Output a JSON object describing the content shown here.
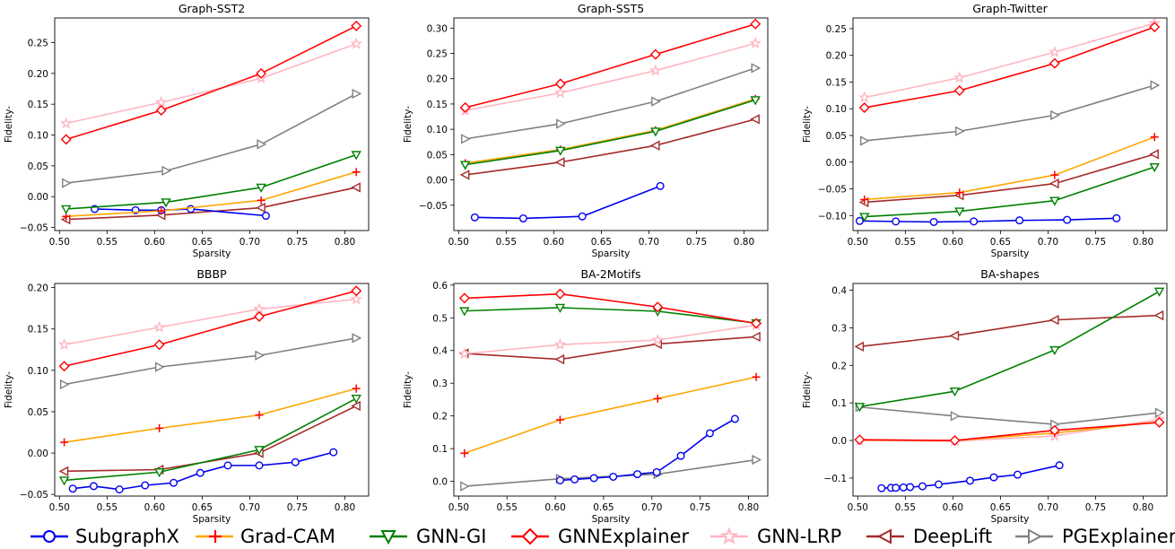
{
  "chart_data": {
    "type": "line",
    "series_styles": [
      {
        "name": "SubgraphX",
        "color": "#0000ee",
        "marker": "circle"
      },
      {
        "name": "Grad-CAM",
        "color": "#ffa500",
        "marker": "plus"
      },
      {
        "name": "GNN-GI",
        "color": "#008000",
        "marker": "triangle-down"
      },
      {
        "name": "GNNExplainer",
        "color": "#ff0000",
        "marker": "diamond"
      },
      {
        "name": "GNN-LRP",
        "color": "#ffb6c1",
        "marker": "star"
      },
      {
        "name": "DeepLift",
        "color": "#a52a2a",
        "marker": "triangle-left"
      },
      {
        "name": "PGExplainer",
        "color": "#808080",
        "marker": "triangle-right"
      }
    ],
    "legend": {
      "placement": "bottom",
      "labels": [
        "SubgraphX",
        "Grad-CAM",
        "GNN-GI",
        "GNNExplainer",
        "GNN-LRP",
        "DeepLift",
        "PGExplainer"
      ]
    },
    "panels": [
      {
        "title": "Graph-SST2",
        "xlabel": "Sparsity",
        "ylabel": "Fidelity-",
        "xlim": [
          0.495,
          0.825
        ],
        "ylim": [
          -0.055,
          0.29
        ],
        "xticks": [
          0.5,
          0.55,
          0.6,
          0.65,
          0.7,
          0.75,
          0.8
        ],
        "xtick_labels": [
          "0.50",
          "0.55",
          "0.60",
          "0.65",
          "0.70",
          "0.75",
          "0.80"
        ],
        "yticks": [
          -0.05,
          0.0,
          0.05,
          0.1,
          0.15,
          0.2,
          0.25
        ],
        "ytick_labels": [
          "−0.05",
          "0.00",
          "0.05",
          "0.10",
          "0.15",
          "0.20",
          "0.25"
        ],
        "series": [
          {
            "name": "SubgraphX",
            "x": [
              0.537,
              0.58,
              0.607,
              0.638,
              0.717
            ],
            "y": [
              -0.02,
              -0.022,
              -0.022,
              -0.02,
              -0.031
            ]
          },
          {
            "name": "Grad-CAM",
            "x": [
              0.507,
              0.607,
              0.712,
              0.812
            ],
            "y": [
              -0.032,
              -0.023,
              -0.006,
              0.04
            ]
          },
          {
            "name": "GNN-GI",
            "x": [
              0.507,
              0.612,
              0.712,
              0.812
            ],
            "y": [
              -0.02,
              -0.009,
              0.015,
              0.068
            ]
          },
          {
            "name": "GNNExplainer",
            "x": [
              0.507,
              0.607,
              0.712,
              0.812
            ],
            "y": [
              0.093,
              0.14,
              0.2,
              0.277
            ]
          },
          {
            "name": "GNN-LRP",
            "x": [
              0.507,
              0.607,
              0.712,
              0.812
            ],
            "y": [
              0.119,
              0.153,
              0.192,
              0.248
            ]
          },
          {
            "name": "DeepLift",
            "x": [
              0.507,
              0.607,
              0.712,
              0.812
            ],
            "y": [
              -0.037,
              -0.03,
              -0.018,
              0.015
            ]
          },
          {
            "name": "PGExplainer",
            "x": [
              0.507,
              0.612,
              0.712,
              0.812
            ],
            "y": [
              0.022,
              0.042,
              0.085,
              0.167
            ]
          }
        ]
      },
      {
        "title": "Graph-SST5",
        "xlabel": "Sparsity",
        "ylabel": "Fidelity-",
        "xlim": [
          0.495,
          0.825
        ],
        "ylim": [
          -0.1,
          0.32
        ],
        "xticks": [
          0.5,
          0.55,
          0.6,
          0.65,
          0.7,
          0.75,
          0.8
        ],
        "xtick_labels": [
          "0.50",
          "0.55",
          "0.60",
          "0.65",
          "0.70",
          "0.75",
          "0.80"
        ],
        "yticks": [
          -0.05,
          0.0,
          0.05,
          0.1,
          0.15,
          0.2,
          0.25,
          0.3
        ],
        "ytick_labels": [
          "−0.05",
          "0.00",
          "0.05",
          "0.10",
          "0.15",
          "0.20",
          "0.25",
          "0.30"
        ],
        "series": [
          {
            "name": "SubgraphX",
            "x": [
              0.517,
              0.568,
              0.63,
              0.712
            ],
            "y": [
              -0.074,
              -0.076,
              -0.072,
              -0.012
            ]
          },
          {
            "name": "Grad-CAM",
            "x": [
              0.507,
              0.607,
              0.707,
              0.812
            ],
            "y": [
              0.033,
              0.06,
              0.098,
              0.16
            ]
          },
          {
            "name": "GNN-GI",
            "x": [
              0.507,
              0.607,
              0.707,
              0.812
            ],
            "y": [
              0.03,
              0.058,
              0.096,
              0.158
            ]
          },
          {
            "name": "GNNExplainer",
            "x": [
              0.507,
              0.607,
              0.707,
              0.812
            ],
            "y": [
              0.143,
              0.19,
              0.248,
              0.308
            ]
          },
          {
            "name": "GNN-LRP",
            "x": [
              0.507,
              0.607,
              0.707,
              0.812
            ],
            "y": [
              0.137,
              0.172,
              0.216,
              0.27
            ]
          },
          {
            "name": "DeepLift",
            "x": [
              0.507,
              0.607,
              0.707,
              0.812
            ],
            "y": [
              0.01,
              0.035,
              0.068,
              0.12
            ]
          },
          {
            "name": "PGExplainer",
            "x": [
              0.507,
              0.607,
              0.707,
              0.812
            ],
            "y": [
              0.081,
              0.111,
              0.155,
              0.221
            ]
          }
        ]
      },
      {
        "title": "Graph-Twitter",
        "xlabel": "Sparsity",
        "ylabel": "Fidelity-",
        "xlim": [
          0.495,
          0.825
        ],
        "ylim": [
          -0.128,
          0.27
        ],
        "xticks": [
          0.5,
          0.55,
          0.6,
          0.65,
          0.7,
          0.75,
          0.8
        ],
        "xtick_labels": [
          "0.50",
          "0.55",
          "0.60",
          "0.65",
          "0.70",
          "0.75",
          "0.80"
        ],
        "yticks": [
          -0.1,
          -0.05,
          0.0,
          0.05,
          0.1,
          0.15,
          0.2,
          0.25
        ],
        "ytick_labels": [
          "−0.10",
          "−0.05",
          "0.00",
          "0.05",
          "0.10",
          "0.15",
          "0.20",
          "0.25"
        ],
        "series": [
          {
            "name": "SubgraphX",
            "x": [
              0.502,
              0.54,
              0.58,
              0.622,
              0.67,
              0.72,
              0.772
            ],
            "y": [
              -0.11,
              -0.111,
              -0.112,
              -0.111,
              -0.109,
              -0.108,
              -0.105
            ]
          },
          {
            "name": "Grad-CAM",
            "x": [
              0.507,
              0.607,
              0.707,
              0.812
            ],
            "y": [
              -0.07,
              -0.057,
              -0.024,
              0.047
            ]
          },
          {
            "name": "GNN-GI",
            "x": [
              0.507,
              0.607,
              0.707,
              0.812
            ],
            "y": [
              -0.102,
              -0.092,
              -0.072,
              -0.009
            ]
          },
          {
            "name": "GNNExplainer",
            "x": [
              0.507,
              0.607,
              0.707,
              0.812
            ],
            "y": [
              0.102,
              0.134,
              0.185,
              0.253
            ]
          },
          {
            "name": "GNN-LRP",
            "x": [
              0.507,
              0.607,
              0.707,
              0.812
            ],
            "y": [
              0.121,
              0.158,
              0.206,
              0.26
            ]
          },
          {
            "name": "DeepLift",
            "x": [
              0.507,
              0.607,
              0.707,
              0.812
            ],
            "y": [
              -0.075,
              -0.062,
              -0.04,
              0.015
            ]
          },
          {
            "name": "PGExplainer",
            "x": [
              0.507,
              0.607,
              0.707,
              0.812
            ],
            "y": [
              0.04,
              0.058,
              0.088,
              0.144
            ]
          }
        ]
      },
      {
        "title": "BBBP",
        "xlabel": "Sparsity",
        "ylabel": "Fidelity-",
        "xlim": [
          0.495,
          0.825
        ],
        "ylim": [
          -0.052,
          0.205
        ],
        "xticks": [
          0.5,
          0.55,
          0.6,
          0.65,
          0.7,
          0.75,
          0.8
        ],
        "xtick_labels": [
          "0.50",
          "0.55",
          "0.60",
          "0.65",
          "0.70",
          "0.75",
          "0.80"
        ],
        "yticks": [
          -0.05,
          0.0,
          0.05,
          0.1,
          0.15,
          0.2
        ],
        "ytick_labels": [
          "−0.05",
          "0.00",
          "0.05",
          "0.10",
          "0.15",
          "0.20"
        ],
        "series": [
          {
            "name": "SubgraphX",
            "x": [
              0.514,
              0.536,
              0.563,
              0.59,
              0.62,
              0.648,
              0.677,
              0.71,
              0.748,
              0.788
            ],
            "y": [
              -0.043,
              -0.04,
              -0.044,
              -0.039,
              -0.036,
              -0.024,
              -0.015,
              -0.015,
              -0.011,
              0.001
            ]
          },
          {
            "name": "Grad-CAM",
            "x": [
              0.505,
              0.605,
              0.71,
              0.812
            ],
            "y": [
              0.013,
              0.03,
              0.046,
              0.078
            ]
          },
          {
            "name": "GNN-GI",
            "x": [
              0.505,
              0.605,
              0.71,
              0.812
            ],
            "y": [
              -0.033,
              -0.023,
              0.004,
              0.066
            ]
          },
          {
            "name": "GNNExplainer",
            "x": [
              0.505,
              0.605,
              0.71,
              0.812
            ],
            "y": [
              0.105,
              0.131,
              0.165,
              0.196
            ]
          },
          {
            "name": "GNN-LRP",
            "x": [
              0.505,
              0.605,
              0.71,
              0.812
            ],
            "y": [
              0.131,
              0.152,
              0.174,
              0.186
            ]
          },
          {
            "name": "DeepLift",
            "x": [
              0.505,
              0.605,
              0.71,
              0.812
            ],
            "y": [
              -0.022,
              -0.02,
              0.0,
              0.057
            ]
          },
          {
            "name": "PGExplainer",
            "x": [
              0.505,
              0.605,
              0.71,
              0.812
            ],
            "y": [
              0.083,
              0.104,
              0.118,
              0.139
            ]
          }
        ]
      },
      {
        "title": "BA-2Motifs",
        "xlabel": "Sparsity",
        "ylabel": "Fidelity-",
        "xlim": [
          0.495,
          0.82
        ],
        "ylim": [
          -0.045,
          0.605
        ],
        "xticks": [
          0.5,
          0.55,
          0.6,
          0.65,
          0.7,
          0.75,
          0.8
        ],
        "xtick_labels": [
          "0.50",
          "0.55",
          "0.60",
          "0.65",
          "0.70",
          "0.75",
          "0.80"
        ],
        "yticks": [
          0.0,
          0.1,
          0.2,
          0.3,
          0.4,
          0.5,
          0.6
        ],
        "ytick_labels": [
          "0.0",
          "0.1",
          "0.2",
          "0.3",
          "0.4",
          "0.5",
          "0.6"
        ],
        "series": [
          {
            "name": "SubgraphX",
            "x": [
              0.605,
              0.62,
              0.64,
              0.66,
              0.685,
              0.705,
              0.73,
              0.76,
              0.786
            ],
            "y": [
              0.003,
              0.006,
              0.01,
              0.014,
              0.022,
              0.028,
              0.078,
              0.147,
              0.191
            ]
          },
          {
            "name": "Grad-CAM",
            "x": [
              0.506,
              0.605,
              0.706,
              0.808
            ],
            "y": [
              0.086,
              0.188,
              0.253,
              0.319
            ]
          },
          {
            "name": "GNN-GI",
            "x": [
              0.506,
              0.605,
              0.706,
              0.808
            ],
            "y": [
              0.521,
              0.531,
              0.52,
              0.484
            ]
          },
          {
            "name": "GNNExplainer",
            "x": [
              0.506,
              0.605,
              0.706,
              0.808
            ],
            "y": [
              0.56,
              0.573,
              0.533,
              0.483
            ]
          },
          {
            "name": "GNN-LRP",
            "x": [
              0.506,
              0.605,
              0.706,
              0.808
            ],
            "y": [
              0.39,
              0.418,
              0.432,
              0.478
            ]
          },
          {
            "name": "DeepLift",
            "x": [
              0.506,
              0.605,
              0.706,
              0.808
            ],
            "y": [
              0.391,
              0.373,
              0.42,
              0.442
            ]
          },
          {
            "name": "PGExplainer",
            "x": [
              0.506,
              0.605,
              0.706,
              0.808
            ],
            "y": [
              -0.015,
              0.008,
              0.022,
              0.066
            ]
          }
        ]
      },
      {
        "title": "BA-shapes",
        "xlabel": "Sparsity",
        "ylabel": "Fidelity-",
        "xlim": [
          0.495,
          0.825
        ],
        "ylim": [
          -0.148,
          0.418
        ],
        "xticks": [
          0.5,
          0.55,
          0.6,
          0.65,
          0.7,
          0.75,
          0.8
        ],
        "xtick_labels": [
          "0.50",
          "0.55",
          "0.60",
          "0.65",
          "0.70",
          "0.75",
          "0.80"
        ],
        "yticks": [
          -0.1,
          0.0,
          0.1,
          0.2,
          0.3,
          0.4
        ],
        "ytick_labels": [
          "−0.1",
          "0.0",
          "0.1",
          "0.2",
          "0.3",
          "0.4"
        ],
        "series": [
          {
            "name": "SubgraphX",
            "x": [
              0.525,
              0.535,
              0.54,
              0.548,
              0.555,
              0.568,
              0.585,
              0.618,
              0.643,
              0.668,
              0.712
            ],
            "y": [
              -0.127,
              -0.126,
              -0.126,
              -0.125,
              -0.124,
              -0.122,
              -0.117,
              -0.107,
              -0.098,
              -0.091,
              -0.066
            ]
          },
          {
            "name": "Grad-CAM",
            "x": [
              0.502,
              0.602,
              0.707,
              0.817
            ],
            "y": [
              0.001,
              0.0,
              0.02,
              0.05
            ]
          },
          {
            "name": "GNN-GI",
            "x": [
              0.502,
              0.602,
              0.707,
              0.817
            ],
            "y": [
              0.09,
              0.131,
              0.241,
              0.397
            ]
          },
          {
            "name": "GNNExplainer",
            "x": [
              0.502,
              0.602,
              0.707,
              0.817
            ],
            "y": [
              0.002,
              0.0,
              0.027,
              0.048
            ]
          },
          {
            "name": "GNN-LRP",
            "x": [
              0.502,
              0.602,
              0.707,
              0.817
            ],
            "y": [
              0.0,
              -0.002,
              0.012,
              0.056
            ]
          },
          {
            "name": "DeepLift",
            "x": [
              0.502,
              0.602,
              0.707,
              0.817
            ],
            "y": [
              0.25,
              0.279,
              0.321,
              0.333
            ]
          },
          {
            "name": "PGExplainer",
            "x": [
              0.502,
              0.602,
              0.707,
              0.817
            ],
            "y": [
              0.089,
              0.065,
              0.043,
              0.074
            ]
          }
        ]
      }
    ]
  }
}
